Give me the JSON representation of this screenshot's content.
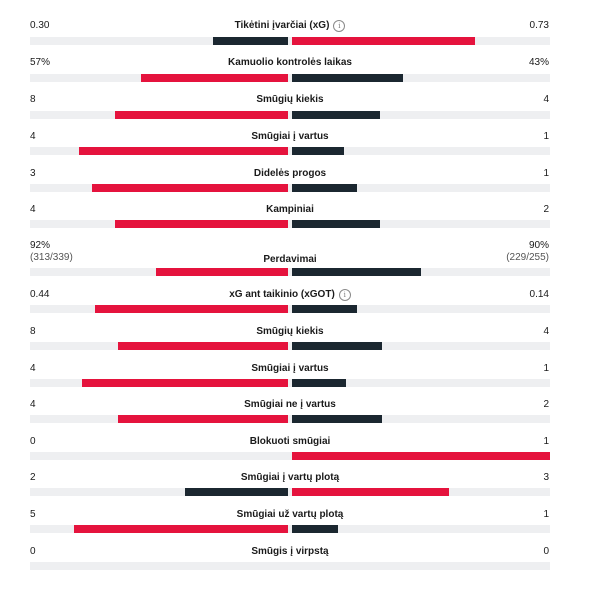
{
  "colors": {
    "red": "#e5133d",
    "dark": "#1b2730",
    "track": "#eeeff1"
  },
  "stats": [
    {
      "label": "Tikėtini įvarčiai (xG)",
      "info": "info-icon",
      "home": "0.30",
      "away": "0.73",
      "home_share": 0.29,
      "away_share": 0.71,
      "home_color": "dark",
      "away_color": "red"
    },
    {
      "label": "Kamuolio kontrolės laikas",
      "home": "57%",
      "away": "43%",
      "home_share": 0.57,
      "away_share": 0.43,
      "home_color": "red",
      "away_color": "dark"
    },
    {
      "label": "Smūgių kiekis",
      "home": "8",
      "away": "4",
      "home_share": 0.67,
      "away_share": 0.34,
      "home_color": "red",
      "away_color": "dark"
    },
    {
      "label": "Smūgiai į vartus",
      "home": "4",
      "away": "1",
      "home_share": 0.81,
      "away_share": 0.2,
      "home_color": "red",
      "away_color": "dark"
    },
    {
      "label": "Didelės progos",
      "home": "3",
      "away": "1",
      "home_share": 0.76,
      "away_share": 0.25,
      "home_color": "red",
      "away_color": "dark"
    },
    {
      "label": "Kampiniai",
      "home": "4",
      "away": "2",
      "home_share": 0.67,
      "away_share": 0.34,
      "home_color": "red",
      "away_color": "dark"
    },
    {
      "label": "Perdavimai",
      "home": "92%",
      "home_sub": "(313/339)",
      "away": "90%",
      "away_sub": "(229/255)",
      "home_share": 0.51,
      "away_share": 0.5,
      "home_color": "red",
      "away_color": "dark"
    },
    {
      "label": "xG ant taikinio (xGOT)",
      "info": "info-icon",
      "home": "0.44",
      "away": "0.14",
      "home_share": 0.75,
      "away_share": 0.25,
      "home_color": "red",
      "away_color": "dark"
    },
    {
      "label": "Smūgių kiekis",
      "home": "8",
      "away": "4",
      "home_share": 0.66,
      "away_share": 0.35,
      "home_color": "red",
      "away_color": "dark"
    },
    {
      "label": "Smūgiai į vartus",
      "home": "4",
      "away": "1",
      "home_share": 0.8,
      "away_share": 0.21,
      "home_color": "red",
      "away_color": "dark"
    },
    {
      "label": "Smūgiai ne į vartus",
      "home": "4",
      "away": "2",
      "home_share": 0.66,
      "away_share": 0.35,
      "home_color": "red",
      "away_color": "dark"
    },
    {
      "label": "Blokuoti smūgiai",
      "home": "0",
      "away": "1",
      "home_share": 0,
      "away_share": 1,
      "home_color": "dark",
      "away_color": "red"
    },
    {
      "label": "Smūgiai į vartų plotą",
      "home": "2",
      "away": "3",
      "home_share": 0.4,
      "away_share": 0.61,
      "home_color": "dark",
      "away_color": "red"
    },
    {
      "label": "Smūgiai už vartų plotą",
      "home": "5",
      "away": "1",
      "home_share": 0.83,
      "away_share": 0.18,
      "home_color": "red",
      "away_color": "dark"
    },
    {
      "label": "Smūgis į virpstą",
      "home": "0",
      "away": "0",
      "home_share": 0,
      "away_share": 0,
      "home_color": "dark",
      "away_color": "dark"
    }
  ]
}
